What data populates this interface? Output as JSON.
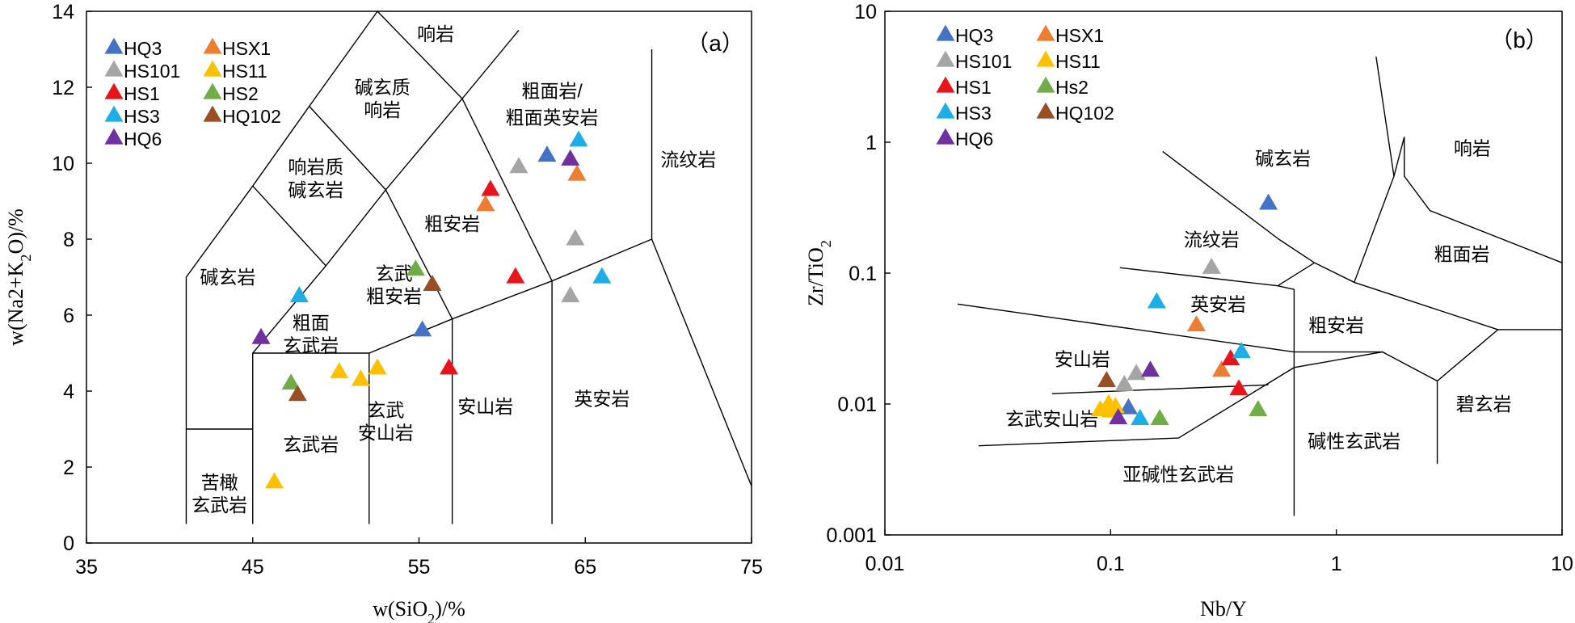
{
  "chart_data": [
    {
      "type": "scatter",
      "panel_label": "（a）",
      "xlabel": "w(SiO2)/%",
      "ylabel": "w(Na2+K2O)/%",
      "xlim": [
        35,
        75
      ],
      "ylim": [
        0,
        14
      ],
      "x_ticks": [
        "35",
        "45",
        "55",
        "65",
        "75"
      ],
      "y_ticks": [
        "0",
        "2",
        "4",
        "6",
        "8",
        "10",
        "12",
        "14"
      ],
      "legend_placement": "top-left",
      "legend": [
        "HQ3",
        "HSX1",
        "HS101",
        "HS11",
        "HS1",
        "HS2",
        "HS3",
        "HQ102",
        "HQ6"
      ],
      "series": [
        {
          "name": "HQ3",
          "color": "#4472c4",
          "points": [
            [
              55.2,
              5.6
            ],
            [
              62.7,
              10.2
            ]
          ]
        },
        {
          "name": "HSX1",
          "color": "#ed7d31",
          "points": [
            [
              59.0,
              8.9
            ],
            [
              64.5,
              9.7
            ]
          ]
        },
        {
          "name": "HS101",
          "color": "#a5a5a5",
          "points": [
            [
              61.0,
              9.9
            ],
            [
              64.1,
              6.5
            ],
            [
              64.4,
              8.0
            ]
          ]
        },
        {
          "name": "HS11",
          "color": "#ffc000",
          "points": [
            [
              46.3,
              1.6
            ],
            [
              50.2,
              4.5
            ],
            [
              51.5,
              4.3
            ],
            [
              52.5,
              4.6
            ]
          ]
        },
        {
          "name": "HS1",
          "color": "#e8141c",
          "points": [
            [
              56.8,
              4.6
            ],
            [
              59.3,
              9.3
            ],
            [
              60.8,
              7.0
            ]
          ]
        },
        {
          "name": "HS2",
          "color": "#70ad47",
          "points": [
            [
              47.3,
              4.2
            ],
            [
              54.8,
              7.2
            ]
          ]
        },
        {
          "name": "HS3",
          "color": "#1eaee6",
          "points": [
            [
              47.8,
              6.5
            ],
            [
              64.6,
              10.6
            ],
            [
              66.0,
              7.0
            ]
          ]
        },
        {
          "name": "HQ102",
          "color": "#9a4e24",
          "points": [
            [
              47.7,
              3.9
            ],
            [
              55.8,
              6.8
            ]
          ]
        },
        {
          "name": "HQ6",
          "color": "#7030a0",
          "points": [
            [
              45.5,
              5.4
            ],
            [
              64.1,
              10.1
            ]
          ]
        }
      ],
      "field_labels": [
        {
          "text": "响岩",
          "x": 56.0,
          "y": 13.4
        },
        {
          "text": "碱玄质",
          "x": 52.8,
          "y": 12.0
        },
        {
          "text": "响岩",
          "x": 52.8,
          "y": 11.4
        },
        {
          "text": "粗面岩/",
          "x": 63.0,
          "y": 11.9
        },
        {
          "text": "粗面英安岩",
          "x": 63.0,
          "y": 11.2
        },
        {
          "text": "流纹岩",
          "x": 71.2,
          "y": 10.1
        },
        {
          "text": "响岩质",
          "x": 48.8,
          "y": 9.9
        },
        {
          "text": "碱玄岩",
          "x": 48.8,
          "y": 9.3
        },
        {
          "text": "粗安岩",
          "x": 57.0,
          "y": 8.4
        },
        {
          "text": "碱玄岩",
          "x": 43.5,
          "y": 7.0
        },
        {
          "text": "玄武",
          "x": 53.5,
          "y": 7.1
        },
        {
          "text": "粗安岩",
          "x": 53.5,
          "y": 6.5
        },
        {
          "text": "粗面",
          "x": 48.5,
          "y": 5.8
        },
        {
          "text": "玄武岩",
          "x": 48.5,
          "y": 5.2
        },
        {
          "text": "玄武",
          "x": 53.0,
          "y": 3.5
        },
        {
          "text": "安山岩",
          "x": 53.0,
          "y": 2.9
        },
        {
          "text": "安山岩",
          "x": 59.0,
          "y": 3.6
        },
        {
          "text": "英安岩",
          "x": 66.0,
          "y": 3.8
        },
        {
          "text": "玄武岩",
          "x": 48.5,
          "y": 2.6
        },
        {
          "text": "苦橄",
          "x": 43.0,
          "y": 1.6
        },
        {
          "text": "玄武岩",
          "x": 43.0,
          "y": 1.0
        }
      ],
      "field_boundaries": [
        [
          [
            41,
            0.5
          ],
          [
            41,
            7
          ],
          [
            45,
            9.4
          ],
          [
            48.4,
            11.5
          ],
          [
            52.5,
            14
          ]
        ],
        [
          [
            41,
            3
          ],
          [
            45,
            3
          ]
        ],
        [
          [
            45,
            0.5
          ],
          [
            45,
            5
          ],
          [
            49.4,
            7.3
          ],
          [
            53,
            9.3
          ],
          [
            57.6,
            11.7
          ],
          [
            61,
            13.5
          ]
        ],
        [
          [
            45,
            5
          ],
          [
            52,
            5
          ],
          [
            57,
            5.9
          ],
          [
            63,
            6.9
          ],
          [
            69,
            8
          ],
          [
            75,
            1.5
          ]
        ],
        [
          [
            45,
            9.4
          ],
          [
            49.4,
            7.3
          ]
        ],
        [
          [
            48.4,
            11.5
          ],
          [
            53,
            9.3
          ]
        ],
        [
          [
            52.5,
            14
          ],
          [
            57.6,
            11.7
          ]
        ],
        [
          [
            52,
            0.5
          ],
          [
            52,
            5
          ]
        ],
        [
          [
            57,
            0.5
          ],
          [
            57,
            5.9
          ]
        ],
        [
          [
            63,
            0.5
          ],
          [
            63,
            6.9
          ]
        ],
        [
          [
            69,
            8
          ],
          [
            69,
            13
          ]
        ],
        [
          [
            57.6,
            11.7
          ],
          [
            63,
            6.9
          ]
        ],
        [
          [
            53,
            9.3
          ],
          [
            57,
            5.9
          ]
        ]
      ]
    },
    {
      "type": "scatter",
      "panel_label": "（b）",
      "xlabel": "Nb/Y",
      "ylabel": "Zr/TiO2",
      "x_scale": "log",
      "y_scale": "log",
      "xlim": [
        0.01,
        10
      ],
      "ylim": [
        0.001,
        10
      ],
      "x_ticks": [
        "0.01",
        "0.1",
        "1",
        "10"
      ],
      "y_ticks": [
        "0.001",
        "0.01",
        "0.1",
        "1",
        "10"
      ],
      "legend_placement": "top-left",
      "legend": [
        "HQ3",
        "HSX1",
        "HS101",
        "HS11",
        "HS1",
        "Hs2",
        "HS3",
        "HQ102",
        "HQ6"
      ],
      "series": [
        {
          "name": "HQ3",
          "color": "#4472c4",
          "points": [
            [
              0.5,
              0.34
            ],
            [
              0.12,
              0.0093
            ]
          ]
        },
        {
          "name": "HSX1",
          "color": "#ed7d31",
          "points": [
            [
              0.24,
              0.04
            ],
            [
              0.31,
              0.018
            ]
          ]
        },
        {
          "name": "HS101",
          "color": "#a5a5a5",
          "points": [
            [
              0.28,
              0.11
            ],
            [
              0.13,
              0.017
            ],
            [
              0.115,
              0.014
            ]
          ]
        },
        {
          "name": "HS11",
          "color": "#ffc000",
          "points": [
            [
              0.09,
              0.009
            ],
            [
              0.098,
              0.01
            ],
            [
              0.105,
              0.0095
            ],
            [
              0.1,
              0.0088
            ]
          ]
        },
        {
          "name": "HS1",
          "color": "#e8141c",
          "points": [
            [
              0.34,
              0.022
            ],
            [
              0.37,
              0.013
            ]
          ]
        },
        {
          "name": "Hs2",
          "color": "#70ad47",
          "points": [
            [
              0.165,
              0.0077
            ],
            [
              0.45,
              0.009
            ]
          ]
        },
        {
          "name": "HS3",
          "color": "#1eaee6",
          "points": [
            [
              0.16,
              0.06
            ],
            [
              0.38,
              0.025
            ],
            [
              0.135,
              0.0077
            ]
          ]
        },
        {
          "name": "HQ102",
          "color": "#9a4e24",
          "points": [
            [
              0.096,
              0.015
            ]
          ]
        },
        {
          "name": "HQ6",
          "color": "#7030a0",
          "points": [
            [
              0.15,
              0.018
            ],
            [
              0.108,
              0.0078
            ]
          ]
        }
      ],
      "field_labels": [
        {
          "text": "碱玄岩",
          "x": 0.58,
          "y": 0.75
        },
        {
          "text": "响岩",
          "x": 4.0,
          "y": 0.9
        },
        {
          "text": "流纹岩",
          "x": 0.28,
          "y": 0.18
        },
        {
          "text": "粗面岩",
          "x": 3.6,
          "y": 0.14
        },
        {
          "text": "英安岩",
          "x": 0.3,
          "y": 0.058
        },
        {
          "text": "粗安岩",
          "x": 1.0,
          "y": 0.04
        },
        {
          "text": "安山岩",
          "x": 0.075,
          "y": 0.022
        },
        {
          "text": "碧玄岩",
          "x": 4.5,
          "y": 0.01
        },
        {
          "text": "玄武安山岩",
          "x": 0.055,
          "y": 0.0077
        },
        {
          "text": "碱性玄武岩",
          "x": 1.2,
          "y": 0.0052
        },
        {
          "text": "亚碱性玄武岩",
          "x": 0.2,
          "y": 0.0029
        }
      ],
      "field_boundaries": [
        [
          [
            0.17,
            0.85
          ],
          [
            0.56,
            0.18
          ],
          [
            0.8,
            0.12
          ]
        ],
        [
          [
            0.8,
            0.12
          ],
          [
            0.55,
            0.08
          ]
        ],
        [
          [
            0.11,
            0.11
          ],
          [
            0.55,
            0.08
          ]
        ],
        [
          [
            0.55,
            0.08
          ],
          [
            0.65,
            0.075
          ],
          [
            0.65,
            0.0014
          ]
        ],
        [
          [
            0.021,
            0.058
          ],
          [
            0.65,
            0.025
          ]
        ],
        [
          [
            0.055,
            0.012
          ],
          [
            0.5,
            0.014
          ]
        ],
        [
          [
            0.026,
            0.0048
          ],
          [
            0.2,
            0.0055
          ],
          [
            0.65,
            0.019
          ],
          [
            1.6,
            0.025
          ],
          [
            2.8,
            0.015
          ],
          [
            5.2,
            0.037
          ],
          [
            10,
            0.037
          ]
        ],
        [
          [
            0.65,
            0.025
          ],
          [
            1.6,
            0.025
          ]
        ],
        [
          [
            0.8,
            0.12
          ],
          [
            1.2,
            0.085
          ],
          [
            5.2,
            0.037
          ]
        ],
        [
          [
            1.2,
            0.085
          ],
          [
            1.8,
            0.55
          ],
          [
            1.5,
            4.5
          ]
        ],
        [
          [
            1.8,
            0.55
          ],
          [
            2.0,
            1.1
          ],
          [
            2.0,
            0.55
          ],
          [
            2.6,
            0.3
          ],
          [
            10,
            0.12
          ]
        ],
        [
          [
            2.8,
            0.015
          ],
          [
            2.8,
            0.0035
          ]
        ]
      ]
    }
  ]
}
